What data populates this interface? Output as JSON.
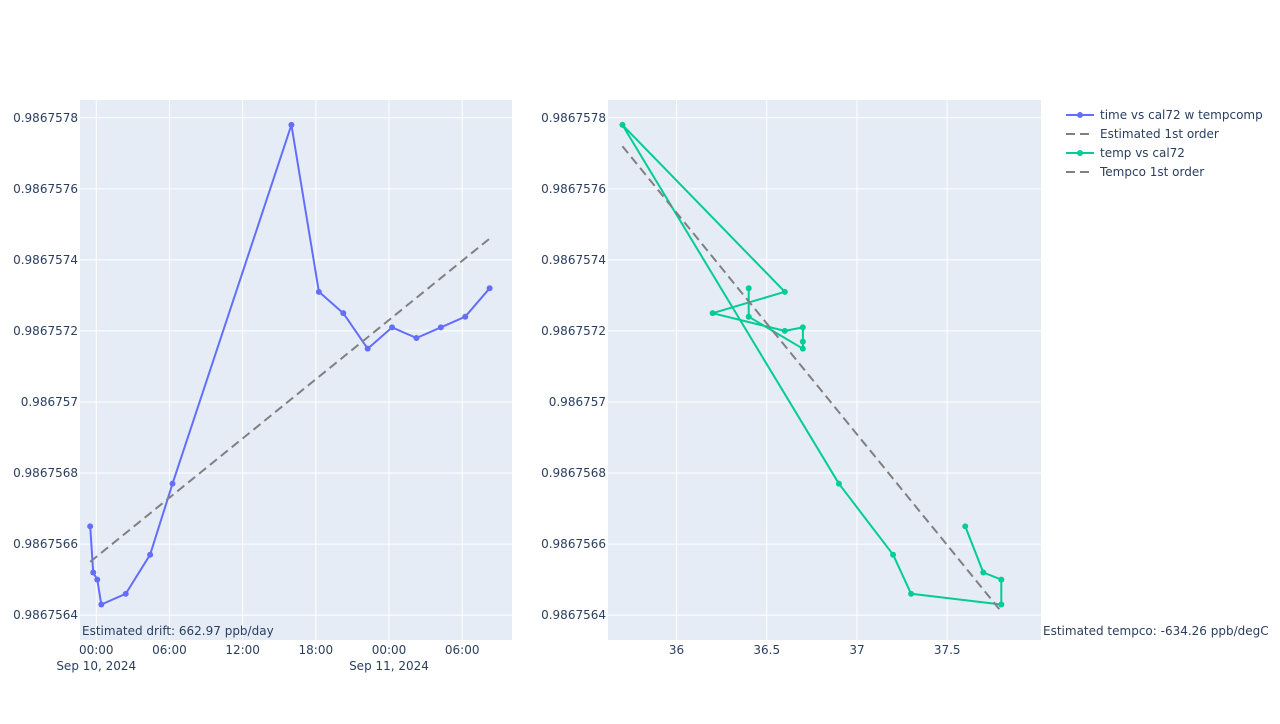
{
  "chart_data": [
    {
      "type": "line",
      "title": "",
      "xlabel": "",
      "ylabel": "",
      "x_axis_type": "date",
      "xlim": [
        "2024-09-09T22:40",
        "2024-09-11T10:05"
      ],
      "ylim": [
        0.98675633,
        0.98675785
      ],
      "x_ticks": [
        {
          "value": "2024-09-10T00:00",
          "label": "00:00",
          "sublabel": "Sep 10, 2024"
        },
        {
          "value": "2024-09-10T06:00",
          "label": "06:00"
        },
        {
          "value": "2024-09-10T12:00",
          "label": "12:00"
        },
        {
          "value": "2024-09-10T18:00",
          "label": "18:00"
        },
        {
          "value": "2024-09-11T00:00",
          "label": "00:00",
          "sublabel": "Sep 11, 2024"
        },
        {
          "value": "2024-09-11T06:00",
          "label": "06:00"
        }
      ],
      "y_ticks": [
        {
          "value": 0.9867564,
          "label": "0.9867564"
        },
        {
          "value": 0.9867566,
          "label": "0.9867566"
        },
        {
          "value": 0.9867568,
          "label": "0.9867568"
        },
        {
          "value": 0.986757,
          "label": "0.986757"
        },
        {
          "value": 0.9867572,
          "label": "0.9867572"
        },
        {
          "value": 0.9867574,
          "label": "0.9867574"
        },
        {
          "value": 0.9867576,
          "label": "0.9867576"
        },
        {
          "value": 0.9867578,
          "label": "0.9867578"
        }
      ],
      "series": [
        {
          "name": "time vs cal72 w tempcomp",
          "mode": "lines+markers",
          "color": "#636efa",
          "x": [
            "2024-09-09T23:30",
            "2024-09-09T23:45",
            "2024-09-10T00:05",
            "2024-09-10T00:25",
            "2024-09-10T02:25",
            "2024-09-10T04:25",
            "2024-09-10T06:15",
            "2024-09-10T16:00",
            "2024-09-10T18:15",
            "2024-09-10T20:15",
            "2024-09-10T22:15",
            "2024-09-11T00:15",
            "2024-09-11T02:15",
            "2024-09-11T04:15",
            "2024-09-11T06:15",
            "2024-09-11T08:15"
          ],
          "y": [
            0.98675665,
            0.98675652,
            0.9867565,
            0.98675643,
            0.98675646,
            0.98675657,
            0.98675677,
            0.98675778,
            0.98675731,
            0.98675725,
            0.98675715,
            0.98675721,
            0.98675718,
            0.98675721,
            0.98675724,
            0.98675732
          ]
        },
        {
          "name": "Estimated 1st order",
          "mode": "lines",
          "dash": "dash",
          "color": "#808080",
          "x": [
            "2024-09-09T23:30",
            "2024-09-11T08:15"
          ],
          "y": [
            0.98675655,
            0.98675746
          ]
        }
      ],
      "annotation": "Estimated drift:  662.97 ppb/day"
    },
    {
      "type": "line",
      "title": "",
      "xlabel": "",
      "ylabel": "",
      "xlim": [
        35.62,
        38.02
      ],
      "ylim": [
        0.98675633,
        0.98675785
      ],
      "x_ticks": [
        {
          "value": 36,
          "label": "36"
        },
        {
          "value": 36.5,
          "label": "36.5"
        },
        {
          "value": 37,
          "label": "37"
        },
        {
          "value": 37.5,
          "label": "37.5"
        }
      ],
      "y_ticks": [
        {
          "value": 0.9867564,
          "label": "0.9867564"
        },
        {
          "value": 0.9867566,
          "label": "0.9867566"
        },
        {
          "value": 0.9867568,
          "label": "0.9867568"
        },
        {
          "value": 0.986757,
          "label": "0.986757"
        },
        {
          "value": 0.9867572,
          "label": "0.9867572"
        },
        {
          "value": 0.9867574,
          "label": "0.9867574"
        },
        {
          "value": 0.9867576,
          "label": "0.9867576"
        },
        {
          "value": 0.9867578,
          "label": "0.9867578"
        }
      ],
      "series": [
        {
          "name": "temp vs cal72",
          "mode": "lines+markers",
          "color": "#00cc96",
          "x": [
            37.6,
            37.7,
            37.8,
            37.8,
            37.3,
            37.2,
            36.9,
            35.7,
            36.6,
            36.2,
            36.6,
            36.7,
            36.7,
            36.7,
            36.4,
            36.4
          ],
          "y": [
            0.98675665,
            0.98675652,
            0.9867565,
            0.98675643,
            0.98675646,
            0.98675657,
            0.98675677,
            0.98675778,
            0.98675731,
            0.98675725,
            0.9867572,
            0.98675721,
            0.98675717,
            0.98675715,
            0.98675724,
            0.98675732
          ]
        },
        {
          "name": "Tempco 1st order",
          "mode": "lines",
          "dash": "dash",
          "color": "#808080",
          "x": [
            35.7,
            37.8
          ],
          "y": [
            0.98675772,
            0.98675641
          ]
        }
      ],
      "annotation": "Estimated tempco:  -634.26 ppb/degC"
    }
  ],
  "legend": {
    "placement": "right",
    "entries": [
      {
        "label": "time vs cal72 w tempcomp",
        "color": "#636efa",
        "style": "line-marker"
      },
      {
        "label": "Estimated 1st order",
        "color": "#808080",
        "style": "dash"
      },
      {
        "label": "temp vs cal72",
        "color": "#00cc96",
        "style": "line-marker"
      },
      {
        "label": "Tempco 1st order",
        "color": "#808080",
        "style": "dash"
      }
    ]
  },
  "colors": {
    "plot_bg": "#e5ecf6",
    "grid": "#ffffff",
    "text": "#2a3f5f"
  }
}
